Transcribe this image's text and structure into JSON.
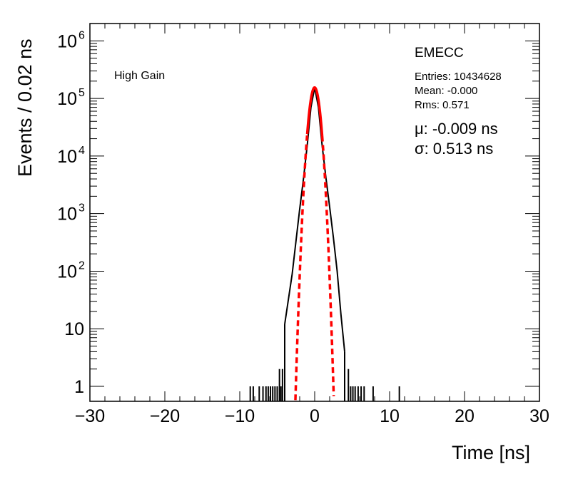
{
  "chart_data": {
    "type": "histogram",
    "xlabel": "Time [ns]",
    "ylabel": "Events / 0.02 ns",
    "xlim": [
      -30,
      30
    ],
    "ylim": [
      0.55,
      2000000
    ],
    "yscale": "log",
    "x_ticks": [
      -30,
      -20,
      -10,
      0,
      10,
      20,
      30
    ],
    "x_tick_labels": [
      "−30",
      "−20",
      "−10",
      "0",
      "10",
      "20",
      "30"
    ],
    "y_ticks": [
      1,
      10,
      100,
      1000,
      10000,
      100000,
      1000000
    ],
    "y_tick_labels": [
      {
        "base": "1",
        "exp": ""
      },
      {
        "base": "10",
        "exp": ""
      },
      {
        "base": "10",
        "exp": "2"
      },
      {
        "base": "10",
        "exp": "3"
      },
      {
        "base": "10",
        "exp": "4"
      },
      {
        "base": "10",
        "exp": "5"
      },
      {
        "base": "10",
        "exp": "6"
      }
    ],
    "annotations": {
      "gain": "High Gain",
      "region": "EMECC",
      "entries": "Entries: 10434628",
      "mean": "Mean: -0.000",
      "rms": "Rms: 0.571",
      "mu": "μ: -0.009 ns",
      "sigma": "σ: 0.513 ns"
    },
    "histogram": {
      "color": "#000000",
      "core_x": [
        -4.0,
        -3.0,
        -2.5,
        -2.0,
        -1.5,
        -1.0,
        -0.5,
        0.0,
        0.5,
        1.0,
        1.5,
        2.0,
        2.5,
        3.0,
        3.5,
        4.0
      ],
      "core_y": [
        12,
        90,
        330,
        1200,
        4000,
        15000,
        70000,
        155000,
        70000,
        15000,
        4200,
        1300,
        380,
        100,
        18,
        4
      ],
      "tail_spikes_x": [
        -8.6,
        -8.2,
        -7.4,
        -6.9,
        -6.5,
        -6.2,
        -5.9,
        -5.6,
        -5.3,
        -5.0,
        -4.7,
        -4.5,
        -4.3,
        4.5,
        4.8,
        5.1,
        5.4,
        5.8,
        6.2,
        6.6,
        7.8,
        11.3
      ],
      "tail_spikes_y": [
        1,
        1,
        1,
        1,
        1,
        1,
        1,
        1,
        1,
        1,
        2,
        1,
        2,
        2,
        1,
        1,
        1,
        1,
        1,
        1,
        1,
        1
      ]
    },
    "gaussian_fit": {
      "color": "#ff0000",
      "mu": -0.009,
      "sigma": 0.513,
      "peak": 155000,
      "fitted_range": [
        -1.0,
        1.0
      ]
    }
  }
}
